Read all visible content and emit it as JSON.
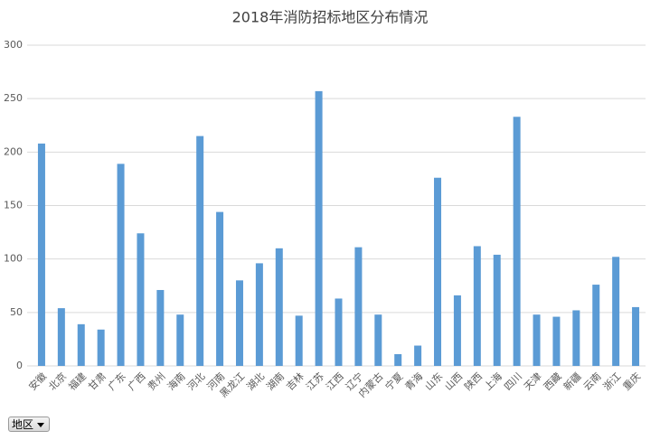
{
  "chart_data": {
    "type": "bar",
    "title": "2018年消防招标地区分布情况",
    "categories": [
      "安徽",
      "北京",
      "福建",
      "甘肃",
      "广东",
      "广西",
      "贵州",
      "海南",
      "河北",
      "河南",
      "黑龙江",
      "湖北",
      "湖南",
      "吉林",
      "江苏",
      "江西",
      "辽宁",
      "内蒙古",
      "宁夏",
      "青海",
      "山东",
      "山西",
      "陕西",
      "上海",
      "四川",
      "天津",
      "西藏",
      "新疆",
      "云南",
      "浙江",
      "重庆"
    ],
    "values": [
      208,
      54,
      39,
      34,
      189,
      124,
      71,
      48,
      215,
      144,
      80,
      96,
      110,
      47,
      257,
      63,
      111,
      48,
      11,
      19,
      176,
      66,
      112,
      104,
      233,
      48,
      46,
      52,
      76,
      102,
      55
    ],
    "color": "#5b9bd5",
    "ylim": [
      0,
      300
    ],
    "yticks": [
      0,
      50,
      100,
      150,
      200,
      250,
      300
    ],
    "grid": true
  },
  "filter": {
    "label": "地区"
  }
}
